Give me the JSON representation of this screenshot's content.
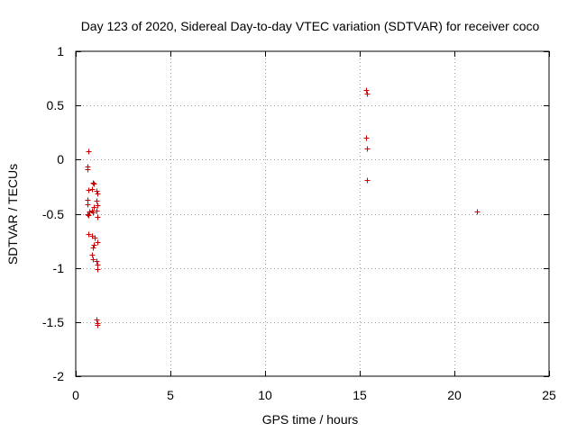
{
  "chart_data": {
    "type": "scatter",
    "title": "Day 123 of 2020, Sidereal Day-to-day VTEC variation (SDTVAR) for receiver coco",
    "xlabel": "GPS time / hours",
    "ylabel": "SDTVAR / TECUs",
    "xlim": [
      0,
      25
    ],
    "ylim": [
      -2,
      1
    ],
    "xticks": [
      0,
      5,
      10,
      15,
      20,
      25
    ],
    "yticks": [
      -2,
      -1.5,
      -1,
      -0.5,
      0,
      0.5,
      1
    ],
    "xtick_labels": [
      "0",
      "5",
      "10",
      "15",
      "20",
      "25"
    ],
    "ytick_labels": [
      "-2",
      "-1.5",
      "-1",
      "-0.5",
      "0",
      "0.5",
      "1"
    ],
    "grid": true,
    "marker": "+",
    "color": "#cc0000",
    "series": [
      {
        "name": "SDTVAR",
        "points": [
          [
            0.65,
            0.08
          ],
          [
            0.62,
            -0.06
          ],
          [
            0.6,
            -0.09
          ],
          [
            0.65,
            -0.28
          ],
          [
            0.6,
            -0.37
          ],
          [
            0.62,
            -0.41
          ],
          [
            0.6,
            -0.5
          ],
          [
            0.65,
            -0.51
          ],
          [
            0.67,
            -0.69
          ],
          [
            0.7,
            -0.48
          ],
          [
            0.85,
            -0.27
          ],
          [
            0.9,
            -0.21
          ],
          [
            0.95,
            -0.22
          ],
          [
            0.85,
            -0.47
          ],
          [
            0.9,
            -0.49
          ],
          [
            0.95,
            -0.44
          ],
          [
            0.85,
            -0.7
          ],
          [
            0.9,
            -0.81
          ],
          [
            0.95,
            -0.79
          ],
          [
            0.88,
            -0.88
          ],
          [
            0.92,
            -0.92
          ],
          [
            1.0,
            -0.72
          ],
          [
            1.1,
            -0.29
          ],
          [
            1.15,
            -0.31
          ],
          [
            1.1,
            -0.38
          ],
          [
            1.12,
            -0.42
          ],
          [
            1.1,
            -0.47
          ],
          [
            1.15,
            -0.53
          ],
          [
            1.12,
            -0.76
          ],
          [
            1.1,
            -0.94
          ],
          [
            1.15,
            -0.97
          ],
          [
            1.12,
            -1.01
          ],
          [
            1.1,
            -1.48
          ],
          [
            1.15,
            -1.51
          ],
          [
            1.12,
            -1.53
          ],
          [
            15.35,
            0.64
          ],
          [
            15.4,
            0.61
          ],
          [
            15.35,
            0.2
          ],
          [
            15.4,
            0.1
          ],
          [
            15.4,
            -0.19
          ],
          [
            21.2,
            -0.48
          ]
        ]
      }
    ]
  }
}
